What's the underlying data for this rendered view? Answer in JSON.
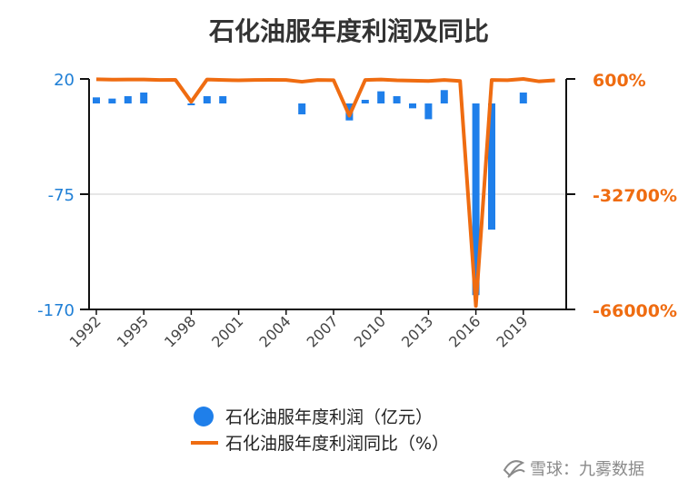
{
  "chart_data": {
    "type": "bar+line",
    "title": "石化油服年度利润及同比",
    "x": [
      1992,
      1993,
      1994,
      1995,
      1996,
      1997,
      1998,
      1999,
      2000,
      2001,
      2002,
      2003,
      2004,
      2005,
      2006,
      2007,
      2008,
      2009,
      2010,
      2011,
      2012,
      2013,
      2014,
      2015,
      2016,
      2017,
      2018,
      2019,
      2020,
      2021
    ],
    "x_tick_labels": [
      "1992",
      "1995",
      "1998",
      "2001",
      "2004",
      "2007",
      "2010",
      "2013",
      "2016",
      "2019"
    ],
    "series": [
      {
        "name": "石化油服年度利润（亿元）",
        "type": "bar",
        "axis": "left",
        "color": "#1f7fea",
        "values": [
          5,
          4,
          6,
          9,
          null,
          null,
          -1,
          6,
          6,
          null,
          null,
          null,
          null,
          -9,
          null,
          null,
          -14,
          3,
          10,
          6,
          -4,
          -13,
          11,
          null,
          -158,
          -104,
          null,
          9,
          null,
          null
        ]
      },
      {
        "name": "石化油服年度利润同比（%）",
        "type": "line",
        "axis": "right",
        "color": "#ef6c11",
        "values": [
          500,
          400,
          450,
          420,
          300,
          350,
          -6000,
          450,
          300,
          200,
          300,
          350,
          300,
          -200,
          300,
          250,
          -10000,
          300,
          450,
          200,
          100,
          0,
          300,
          0,
          -65000,
          300,
          250,
          600,
          -100,
          200
        ]
      }
    ],
    "y_left": {
      "lim": [
        -170,
        20
      ],
      "ticks": [
        "20",
        "-75",
        "-170"
      ]
    },
    "y_right": {
      "lim": [
        -66000,
        600
      ],
      "ticks": [
        "600%",
        "-32700%",
        "-66000%"
      ]
    },
    "grid": true,
    "legend_position": "bottom"
  },
  "watermark": "雪球：九雾数据"
}
